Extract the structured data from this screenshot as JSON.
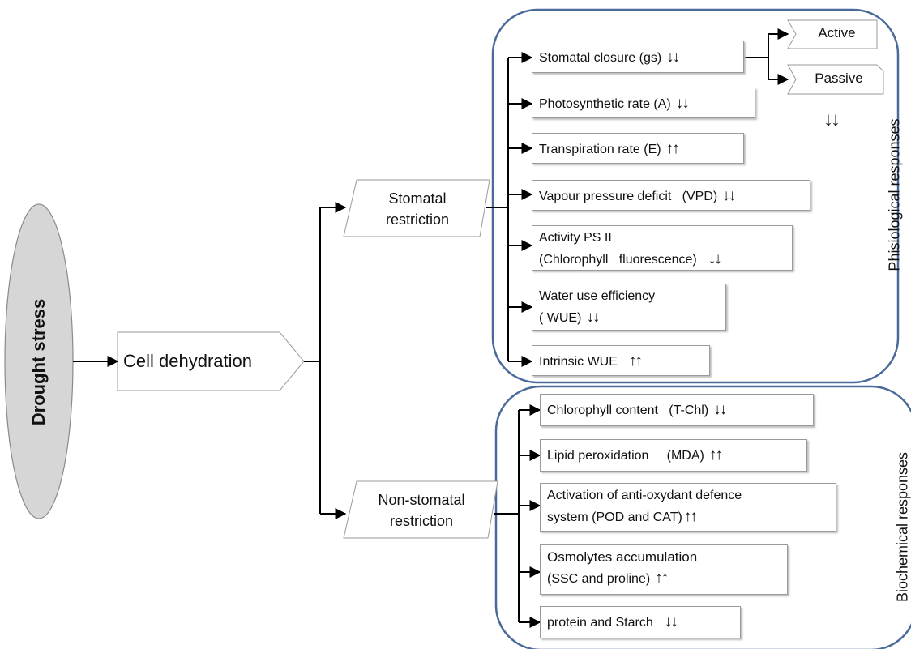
{
  "root": "Drought stress",
  "cell": "Cell dehydration",
  "branches": {
    "stomatal": [
      "Stomatal",
      "restriction"
    ],
    "nonstomatal": [
      "Non-stomatal",
      "restriction"
    ]
  },
  "groups": {
    "physio": "Phisiological responses",
    "biochem": "Biochemical responses"
  },
  "stomatal_mode": {
    "active": "Active",
    "passive": "Passive",
    "passive_arrows": "↓↓"
  },
  "physio_items": [
    {
      "label": "Stomatal closure (gs)",
      "arrows": "↓↓"
    },
    {
      "label": "Photosynthetic rate (A)",
      "arrows": "↓↓"
    },
    {
      "label": "Transpiration rate (E)",
      "arrows": "↑↑"
    },
    {
      "label": "Vapour pressure deficit   (VPD)",
      "arrows": "↓↓"
    },
    {
      "line1": "Activity PS II",
      "line2": "(Chlorophyll   fluorescence)",
      "arrows": "↓↓"
    },
    {
      "line1": "Water use efficiency",
      "line2": "( WUE)",
      "arrows": "↓↓"
    },
    {
      "label": "Intrinsic WUE",
      "arrows": "↑↑"
    }
  ],
  "biochem_items": [
    {
      "label": "Chlorophyll content   (T-Chl)",
      "arrows": "↓↓"
    },
    {
      "label": "Lipid peroxidation     (MDA)",
      "arrows": "↑↑"
    },
    {
      "line1": "Activation of anti-oxydant defence",
      "line2": "system (POD and CAT)",
      "arrows": "↑↑"
    },
    {
      "line1": "Osmolytes accumulation",
      "line2": "(SSC and proline)",
      "arrows": "↑↑"
    },
    {
      "label": "protein and Starch",
      "arrows": "↓↓"
    }
  ]
}
